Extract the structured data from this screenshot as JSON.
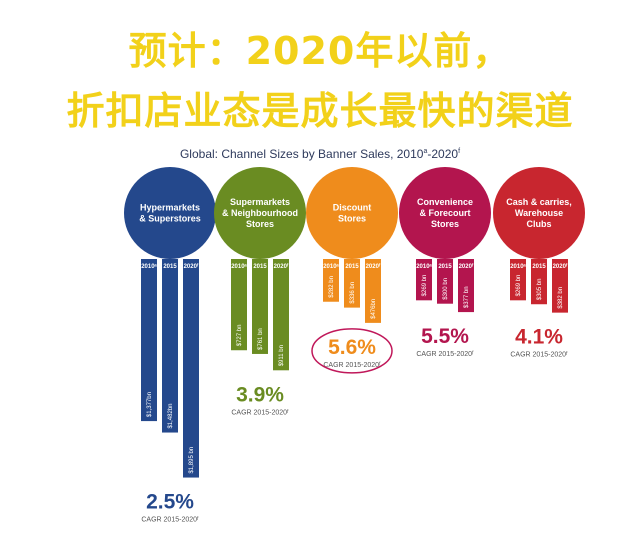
{
  "headline": {
    "line1": "预计：2020年以前，",
    "line2": "折扣店业态是成长最快的渠道"
  },
  "chart_data": {
    "type": "bar",
    "title": "Global: Channel Sizes by Banner Sales, 2010",
    "year_labels": [
      "2010ᵃ",
      "2015",
      "2020ᶠ"
    ],
    "cagr_label": "CAGR 2015-2020ᶠ",
    "channels": [
      {
        "name": "Hypermarkets & Superstores",
        "circle_label": [
          "Hypermarkets",
          "& Superstores"
        ],
        "color": "#24488c",
        "values_bn": [
          1377,
          1482,
          1895
        ],
        "value_labels": [
          "$1,377bn",
          "$1,482bn",
          "$1,895 bn"
        ],
        "cagr": "2.5%",
        "highlight": false
      },
      {
        "name": "Supermarkets & Neighbourhood Stores",
        "circle_label": [
          "Supermarkets",
          "& Neighbourhood",
          "Stores"
        ],
        "color": "#6a8c22",
        "values_bn": [
          727,
          761,
          911
        ],
        "value_labels": [
          "$727 bn",
          "$761 bn",
          "$911 bn"
        ],
        "cagr": "3.9%",
        "highlight": false
      },
      {
        "name": "Discount Stores",
        "circle_label": [
          "Discount",
          "Stores"
        ],
        "color": "#ef8c1c",
        "values_bn": [
          282,
          336,
          476
        ],
        "value_labels": [
          "$282 bn",
          "$336 bn",
          "$476bn"
        ],
        "cagr": "5.6%",
        "highlight": true
      },
      {
        "name": "Convenience & Forecourt Stores",
        "circle_label": [
          "Convenience",
          "& Forecourt",
          "Stores"
        ],
        "color": "#b3154e",
        "values_bn": [
          269,
          300,
          377
        ],
        "value_labels": [
          "$269 bn",
          "$300 bn",
          "$377 bn"
        ],
        "cagr": "5.5%",
        "highlight": false
      },
      {
        "name": "Cash & carries, Warehouse Clubs",
        "circle_label": [
          "Cash & carries,",
          "Warehouse",
          "Clubs"
        ],
        "color": "#c8262f",
        "values_bn": [
          269,
          305,
          382
        ],
        "value_labels": [
          "$269 bn",
          "$305 bn",
          "$382 bn"
        ],
        "cagr": "4.1%",
        "highlight": false
      }
    ]
  },
  "colors": {
    "headline": "#f2d11a",
    "highlight_ring": "#c0185a",
    "subtitle": "#2e3a5c"
  }
}
